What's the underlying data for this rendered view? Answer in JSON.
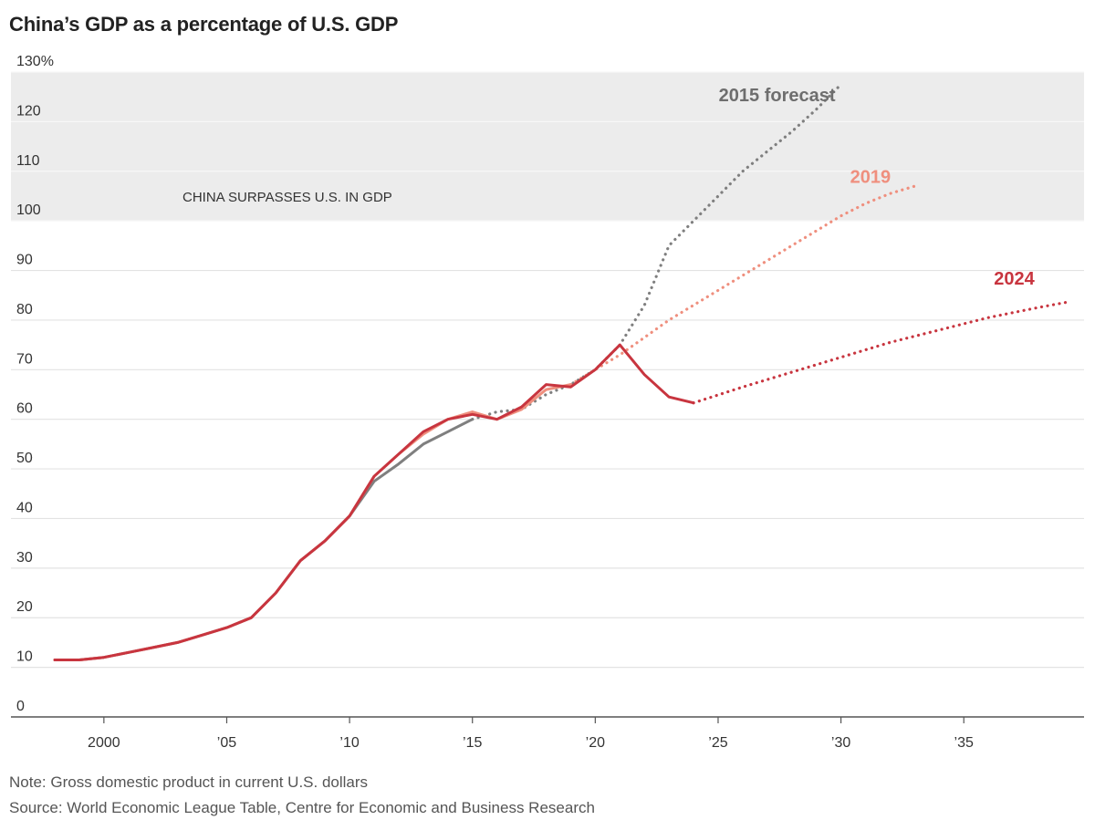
{
  "title": "China’s GDP as a percentage of U.S. GDP",
  "note": "Note: Gross domestic product in current U.S. dollars",
  "source": "Source: World Economic League Table, Centre for Economic and Business Research",
  "colors": {
    "forecast_2015": "#7f7f7f",
    "forecast_2019": "#ef8f7e",
    "forecast_2024": "#c8353f",
    "shade": "#ececec",
    "grid": "#e3e3e3",
    "axis": "#555555"
  },
  "chart_data": {
    "type": "line",
    "title": "China’s GDP as a percentage of U.S. GDP",
    "xlim": [
      1998,
      2039.3
    ],
    "ylim": [
      0,
      130
    ],
    "y_ticks": [
      0,
      10,
      20,
      30,
      40,
      50,
      60,
      70,
      80,
      90,
      100,
      110,
      120,
      130
    ],
    "y_tick_labels": [
      "0",
      "10",
      "20",
      "30",
      "40",
      "50",
      "60",
      "70",
      "80",
      "90",
      "100",
      "110",
      "120",
      "130%"
    ],
    "x_ticks": [
      2000,
      2005,
      2010,
      2015,
      2020,
      2025,
      2030,
      2035
    ],
    "x_tick_labels": [
      "2000",
      "’05",
      "’10",
      "’15",
      "’20",
      "’25",
      "’30",
      "’35"
    ],
    "grid": true,
    "shaded_region": {
      "y_from": 100,
      "y_to": 130,
      "label": "CHINA SURPASSES U.S. IN GDP"
    },
    "series": [
      {
        "name": "2015 forecast",
        "color": "#7f7f7f",
        "actual": [
          [
            1998,
            11.5
          ],
          [
            1999,
            11.5
          ],
          [
            2000,
            12
          ],
          [
            2001,
            13
          ],
          [
            2002,
            14
          ],
          [
            2003,
            15
          ],
          [
            2004,
            16.5
          ],
          [
            2005,
            18
          ],
          [
            2006,
            20
          ],
          [
            2007,
            25
          ],
          [
            2008,
            31.5
          ],
          [
            2009,
            35.5
          ],
          [
            2010,
            40.5
          ],
          [
            2011,
            47.5
          ],
          [
            2012,
            51
          ],
          [
            2013,
            55
          ],
          [
            2014,
            57.5
          ],
          [
            2015,
            60
          ]
        ],
        "forecast": [
          [
            2015,
            60
          ],
          [
            2016,
            61.5
          ],
          [
            2017,
            62
          ],
          [
            2018,
            65
          ],
          [
            2019,
            67
          ],
          [
            2020,
            70
          ],
          [
            2021,
            75
          ],
          [
            2022,
            83
          ],
          [
            2023,
            95
          ],
          [
            2024,
            100
          ],
          [
            2025,
            105
          ],
          [
            2026,
            110
          ],
          [
            2027,
            114
          ],
          [
            2028,
            118
          ],
          [
            2029,
            122.5
          ],
          [
            2030,
            127.5
          ]
        ]
      },
      {
        "name": "2019",
        "color": "#ef8f7e",
        "actual": [
          [
            1998,
            11.5
          ],
          [
            1999,
            11.5
          ],
          [
            2000,
            12
          ],
          [
            2001,
            13
          ],
          [
            2002,
            14
          ],
          [
            2003,
            15
          ],
          [
            2004,
            16.5
          ],
          [
            2005,
            18
          ],
          [
            2006,
            20
          ],
          [
            2007,
            25
          ],
          [
            2008,
            31.5
          ],
          [
            2009,
            35.5
          ],
          [
            2010,
            40.5
          ],
          [
            2011,
            48.5
          ],
          [
            2012,
            53
          ],
          [
            2013,
            57
          ],
          [
            2014,
            60
          ],
          [
            2015,
            61.5
          ],
          [
            2016,
            60
          ],
          [
            2017,
            62
          ],
          [
            2018,
            66
          ],
          [
            2019,
            67
          ]
        ],
        "forecast": [
          [
            2019,
            67
          ],
          [
            2020,
            70
          ],
          [
            2021,
            73
          ],
          [
            2022,
            76.5
          ],
          [
            2023,
            80
          ],
          [
            2024,
            83
          ],
          [
            2025,
            86
          ],
          [
            2026,
            89
          ],
          [
            2027,
            92
          ],
          [
            2028,
            95
          ],
          [
            2029,
            98
          ],
          [
            2030,
            101
          ],
          [
            2031,
            103.5
          ],
          [
            2032,
            105.5
          ],
          [
            2033,
            107
          ]
        ]
      },
      {
        "name": "2024",
        "color": "#c8353f",
        "actual": [
          [
            1998,
            11.5
          ],
          [
            1999,
            11.5
          ],
          [
            2000,
            12
          ],
          [
            2001,
            13
          ],
          [
            2002,
            14
          ],
          [
            2003,
            15
          ],
          [
            2004,
            16.5
          ],
          [
            2005,
            18
          ],
          [
            2006,
            20
          ],
          [
            2007,
            25
          ],
          [
            2008,
            31.5
          ],
          [
            2009,
            35.5
          ],
          [
            2010,
            40.5
          ],
          [
            2011,
            48.5
          ],
          [
            2012,
            53
          ],
          [
            2013,
            57.5
          ],
          [
            2014,
            60
          ],
          [
            2015,
            61
          ],
          [
            2016,
            60
          ],
          [
            2017,
            62.5
          ],
          [
            2018,
            67
          ],
          [
            2019,
            66.5
          ],
          [
            2020,
            70
          ],
          [
            2021,
            75
          ],
          [
            2022,
            69
          ],
          [
            2023,
            64.5
          ],
          [
            2024,
            63.3
          ]
        ],
        "forecast": [
          [
            2024,
            63.3
          ],
          [
            2026,
            66.5
          ],
          [
            2028,
            69.5
          ],
          [
            2030,
            72.5
          ],
          [
            2032,
            75.5
          ],
          [
            2034,
            78
          ],
          [
            2036,
            80.5
          ],
          [
            2038,
            82.5
          ],
          [
            2039.3,
            83.7
          ]
        ]
      }
    ]
  }
}
